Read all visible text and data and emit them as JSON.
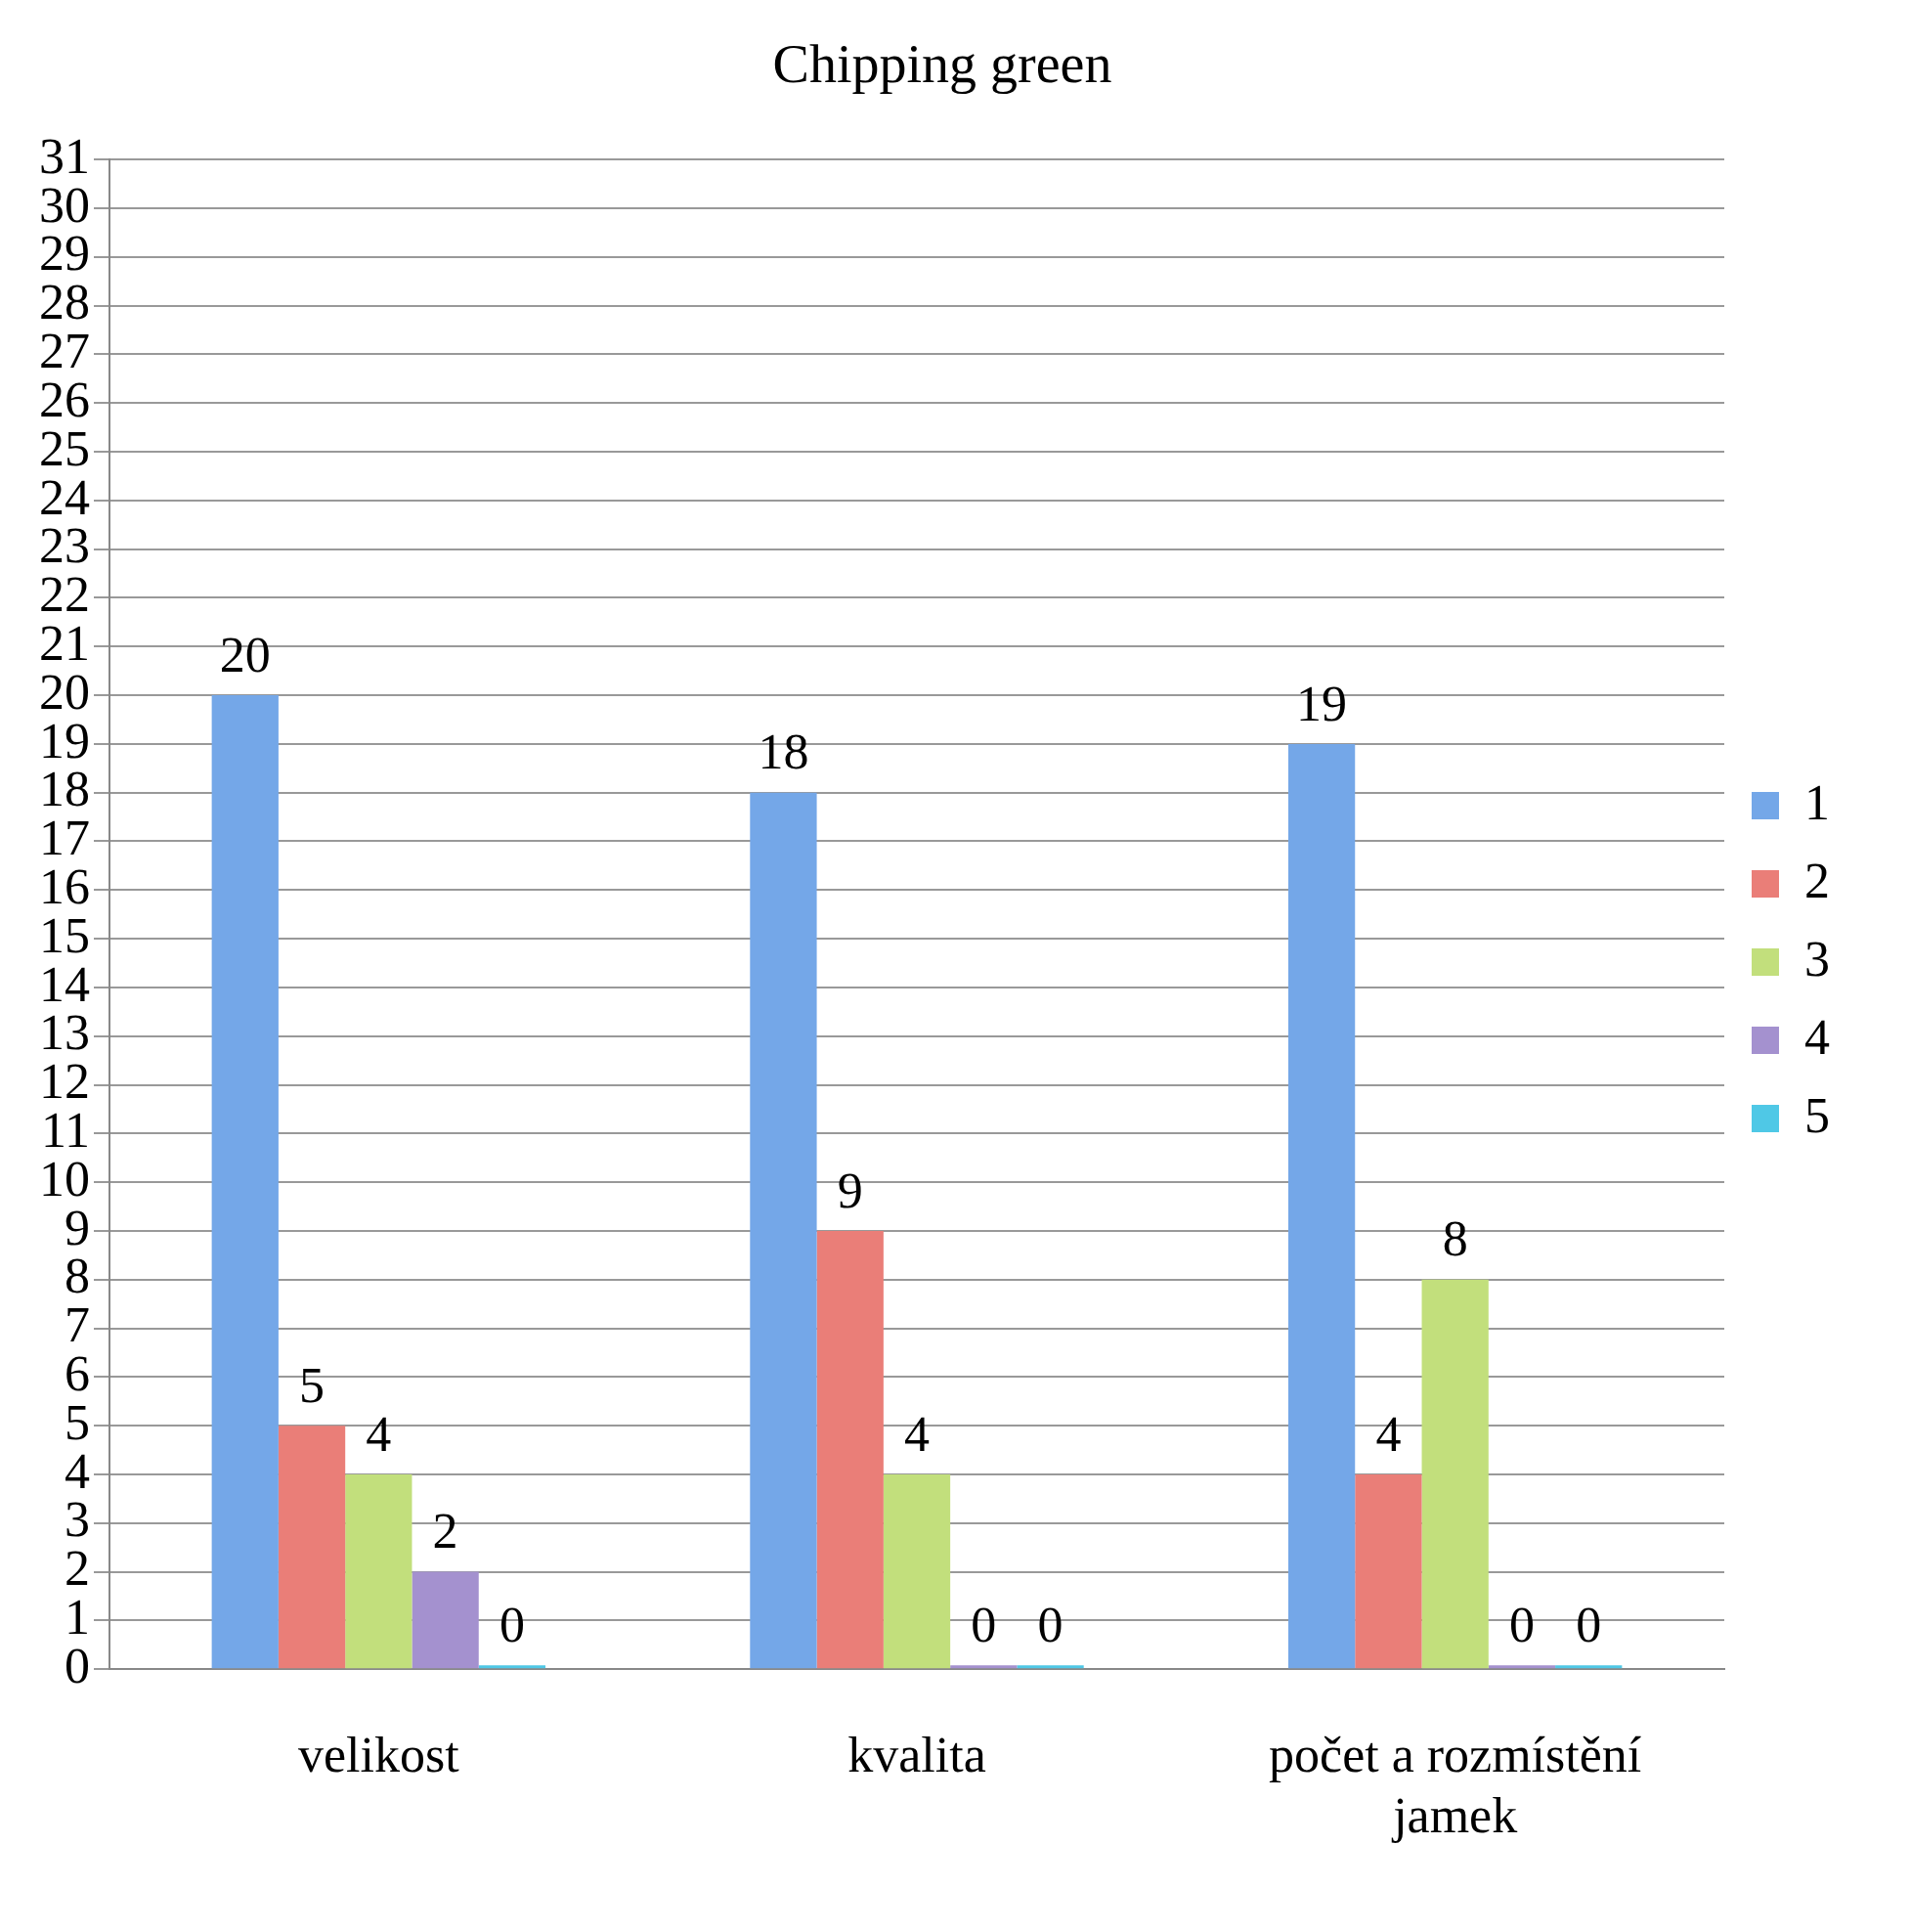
{
  "chart_data": {
    "type": "bar",
    "title": "Chipping green",
    "categories": [
      "velikost",
      "kvalita",
      "počet a rozmístění jamek"
    ],
    "series": [
      {
        "name": "1",
        "color": "#74a7e8",
        "values": [
          20,
          18,
          19
        ]
      },
      {
        "name": "2",
        "color": "#ea7e78",
        "values": [
          5,
          9,
          4
        ]
      },
      {
        "name": "3",
        "color": "#c2df7c",
        "values": [
          4,
          4,
          8
        ]
      },
      {
        "name": "4",
        "color": "#a491cf",
        "values": [
          2,
          0,
          0
        ]
      },
      {
        "name": "5",
        "color": "#4fc8e6",
        "values": [
          0,
          0,
          0
        ]
      }
    ],
    "ylim": [
      0,
      31
    ],
    "yticks": [
      0,
      1,
      2,
      3,
      4,
      5,
      6,
      7,
      8,
      9,
      10,
      11,
      12,
      13,
      14,
      15,
      16,
      17,
      18,
      19,
      20,
      21,
      22,
      23,
      24,
      25,
      26,
      27,
      28,
      29,
      30,
      31
    ],
    "grid": "y",
    "legend": "right",
    "data_labels": true
  }
}
